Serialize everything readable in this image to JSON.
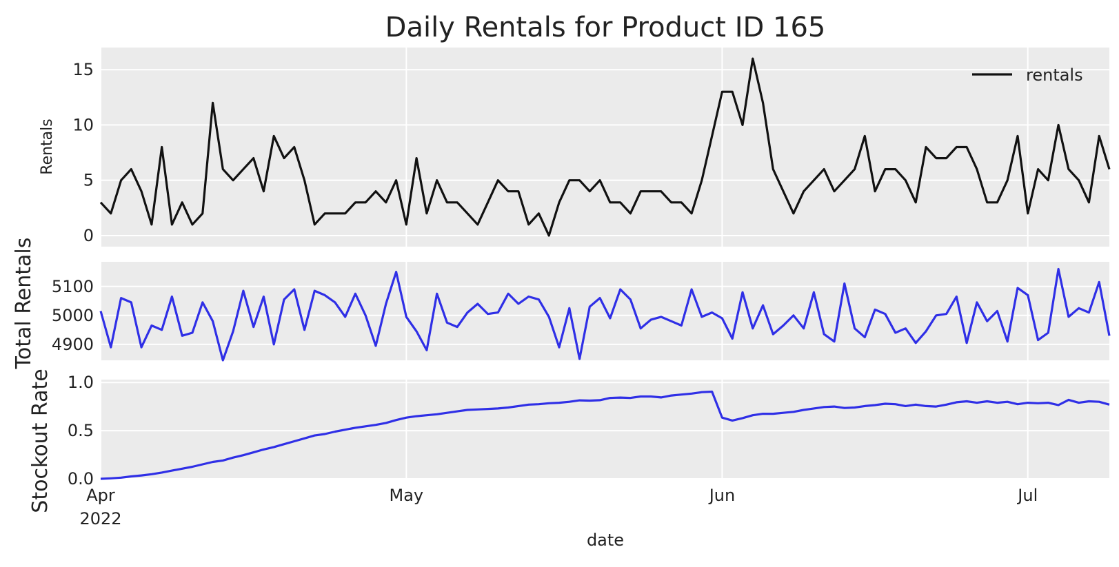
{
  "title": "Daily Rentals for Product ID 165",
  "xlabel": "date",
  "x_ticks": [
    "Apr",
    "May",
    "Jun",
    "Jul"
  ],
  "x_year_label": "2022",
  "legend_label": "rentals",
  "colors": {
    "rentals": "#111111",
    "total": "#2f2fe6",
    "stockout": "#2f2fe6",
    "panel": "#ebebeb",
    "grid": "#ffffff"
  },
  "chart_data": [
    {
      "type": "line",
      "ylabel": "Rentals",
      "start_date": "2022-04-01",
      "ylim": [
        -1,
        17
      ],
      "y_ticks": [
        "0",
        "5",
        "10",
        "15"
      ],
      "legend": "top-right",
      "series": [
        {
          "name": "rentals",
          "values": [
            3,
            2,
            5,
            6,
            4,
            1,
            8,
            1,
            3,
            1,
            2,
            12,
            6,
            5,
            6,
            7,
            4,
            9,
            7,
            8,
            5,
            1,
            2,
            2,
            2,
            3,
            3,
            4,
            3,
            5,
            1,
            7,
            2,
            5,
            3,
            3,
            2,
            1,
            3,
            5,
            4,
            4,
            1,
            2,
            0,
            3,
            5,
            5,
            4,
            5,
            3,
            3,
            2,
            4,
            4,
            4,
            3,
            3,
            2,
            5,
            9,
            13,
            13,
            10,
            16,
            12,
            6,
            4,
            2,
            4,
            5,
            6,
            4,
            5,
            6,
            9,
            4,
            6,
            6,
            5,
            3,
            8,
            7,
            7,
            8,
            8,
            6,
            3,
            3,
            5,
            9,
            2,
            6,
            5,
            10,
            6,
            5,
            3,
            9,
            6
          ]
        }
      ]
    },
    {
      "type": "line",
      "ylabel": "Total Rentals",
      "start_date": "2022-04-01",
      "ylim": [
        4845,
        5185
      ],
      "y_ticks": [
        "4900",
        "5000",
        "5100"
      ],
      "series": [
        {
          "name": "total_rentals",
          "values": [
            5015,
            4890,
            5060,
            5045,
            4890,
            4965,
            4950,
            5065,
            4930,
            4940,
            5045,
            4980,
            4845,
            4945,
            5085,
            4960,
            5065,
            4900,
            5055,
            5090,
            4950,
            5085,
            5070,
            5045,
            4995,
            5075,
            5000,
            4895,
            5040,
            5150,
            4995,
            4945,
            4880,
            5075,
            4975,
            4960,
            5010,
            5040,
            5005,
            5010,
            5075,
            5040,
            5065,
            5055,
            4995,
            4890,
            5025,
            4850,
            5030,
            5060,
            4990,
            5090,
            5055,
            4955,
            4985,
            4995,
            4980,
            4965,
            5090,
            4995,
            5010,
            4990,
            4920,
            5080,
            4955,
            5035,
            4935,
            4965,
            5000,
            4955,
            5080,
            4935,
            4910,
            5110,
            4955,
            4925,
            5020,
            5005,
            4940,
            4955,
            4905,
            4945,
            5000,
            5005,
            5065,
            4905,
            5045,
            4980,
            5015,
            4910,
            5095,
            5070,
            4915,
            4940,
            5160,
            4995,
            5025,
            5010,
            5115,
            4930
          ]
        }
      ]
    },
    {
      "type": "line",
      "ylabel": "Stockout Rate",
      "start_date": "2022-04-01",
      "ylim": [
        0,
        1.03
      ],
      "y_ticks": [
        "0.0",
        "0.5",
        "1.0"
      ],
      "series": [
        {
          "name": "stockout_rate",
          "values": [
            0.0,
            0.005,
            0.012,
            0.025,
            0.035,
            0.048,
            0.065,
            0.085,
            0.105,
            0.125,
            0.15,
            0.175,
            0.19,
            0.22,
            0.245,
            0.275,
            0.305,
            0.33,
            0.36,
            0.39,
            0.42,
            0.45,
            0.465,
            0.49,
            0.51,
            0.53,
            0.545,
            0.56,
            0.58,
            0.61,
            0.635,
            0.65,
            0.66,
            0.67,
            0.685,
            0.7,
            0.715,
            0.72,
            0.725,
            0.73,
            0.74,
            0.755,
            0.77,
            0.775,
            0.785,
            0.79,
            0.8,
            0.815,
            0.812,
            0.816,
            0.84,
            0.843,
            0.84,
            0.855,
            0.855,
            0.845,
            0.865,
            0.875,
            0.885,
            0.9,
            0.905,
            0.635,
            0.605,
            0.63,
            0.66,
            0.675,
            0.675,
            0.685,
            0.695,
            0.715,
            0.73,
            0.745,
            0.75,
            0.735,
            0.74,
            0.755,
            0.765,
            0.78,
            0.775,
            0.755,
            0.77,
            0.755,
            0.75,
            0.77,
            0.795,
            0.805,
            0.79,
            0.805,
            0.79,
            0.8,
            0.775,
            0.79,
            0.785,
            0.79,
            0.765,
            0.82,
            0.79,
            0.805,
            0.8,
            0.77
          ]
        }
      ]
    }
  ]
}
